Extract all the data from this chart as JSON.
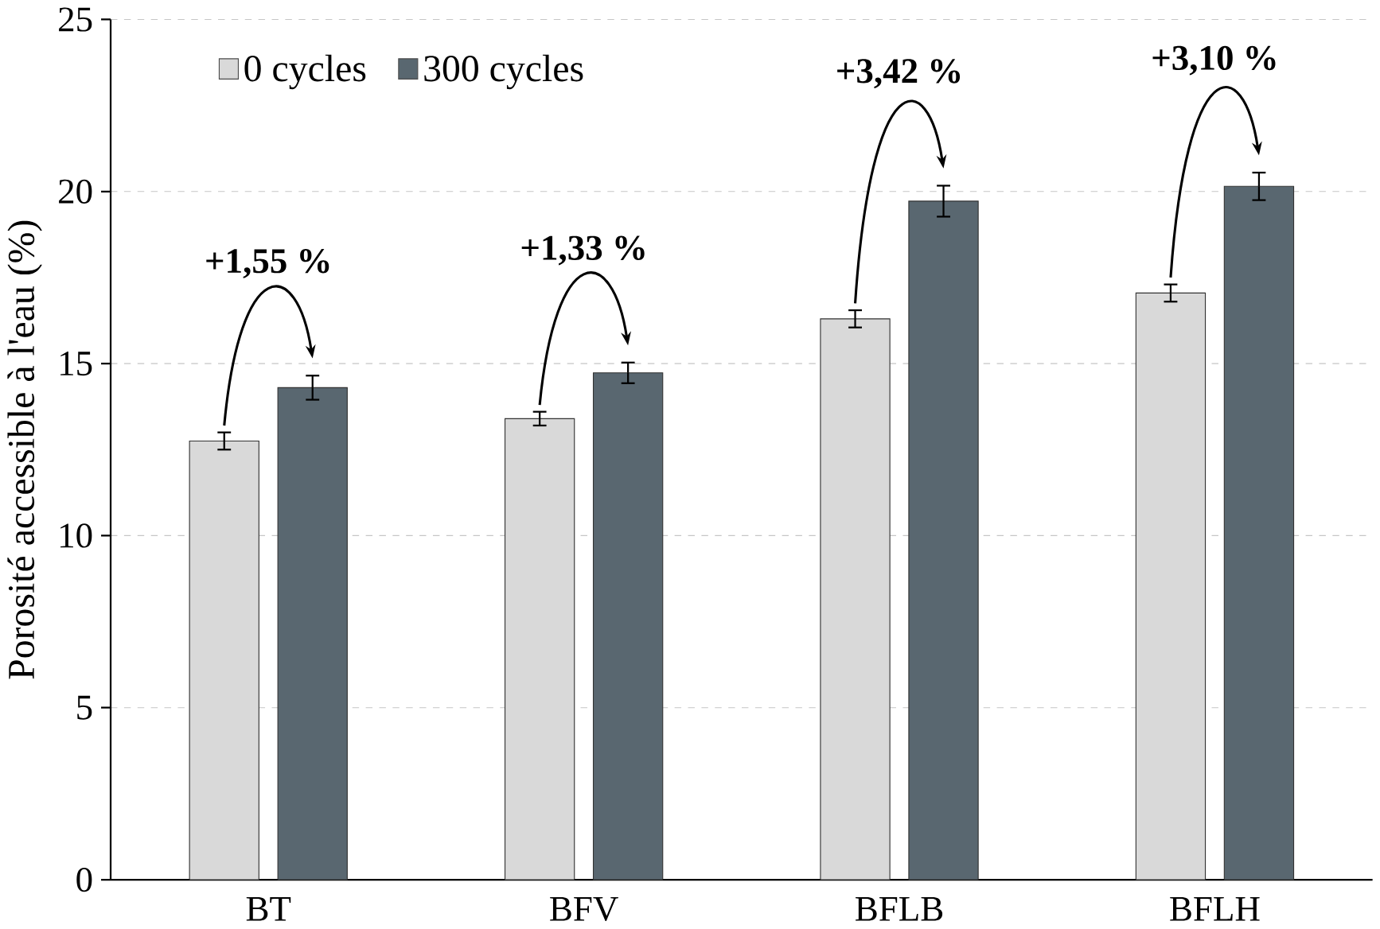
{
  "chart_data": {
    "type": "bar",
    "ylabel": "Porosité accessible à l'eau (%)",
    "categories": [
      "BT",
      "BFV",
      "BFLB",
      "BFLH"
    ],
    "series": [
      {
        "name": "0 cycles",
        "color": "#d9d9d9",
        "values": [
          12.75,
          13.4,
          16.3,
          17.05
        ],
        "errors": [
          0.25,
          0.2,
          0.25,
          0.25
        ]
      },
      {
        "name": "300 cycles",
        "color": "#596770",
        "values": [
          14.3,
          14.73,
          19.72,
          20.15
        ],
        "errors": [
          0.35,
          0.3,
          0.45,
          0.4
        ]
      }
    ],
    "ylim": [
      0,
      25
    ],
    "yticks": [
      0,
      5,
      10,
      15,
      20,
      25
    ],
    "grid": "y",
    "legend": "top left",
    "annotations": [
      "+1,55 %",
      "+1,33 %",
      "+3,42 %",
      "+3,10 %"
    ]
  }
}
